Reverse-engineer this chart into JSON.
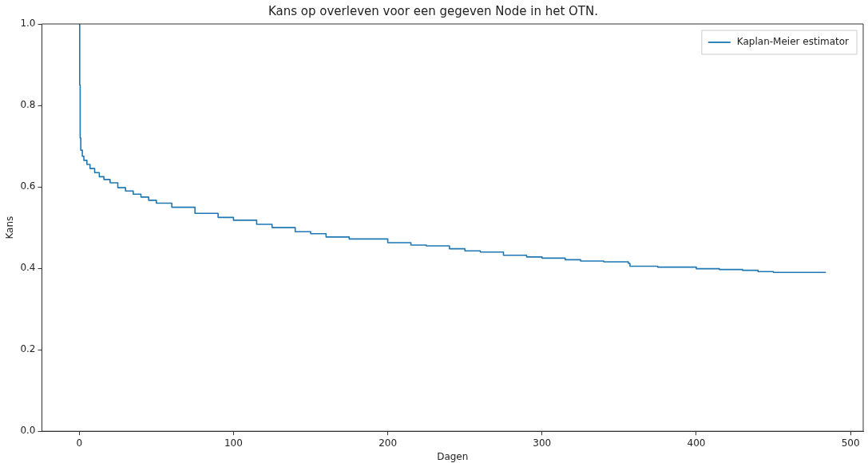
{
  "chart_data": {
    "type": "step",
    "title": "Kans op overleven voor een gegeven Node in het OTN.",
    "xlabel": "Dagen",
    "ylabel": "Kans",
    "xlim": [
      -24.2,
      508.2
    ],
    "xticks": [
      0,
      100,
      200,
      300,
      400,
      500
    ],
    "ylim": [
      0,
      1
    ],
    "yticks": [
      {
        "value": 0,
        "label": "0.0"
      },
      0.2,
      0.4,
      0.6,
      0.8,
      {
        "value": 1,
        "label": "1.0"
      }
    ],
    "grid": false,
    "legend": "top right",
    "marker": "none",
    "line_style": "solid",
    "series": [
      {
        "name": "Kaplan-Meier estimator",
        "color": "#1f77b4",
        "x": [
          0,
          0.3,
          0.6,
          1,
          2,
          3,
          5,
          7,
          10,
          13,
          16,
          20,
          25,
          30,
          35,
          40,
          45,
          50,
          60,
          75,
          90,
          100,
          115,
          125,
          140,
          150,
          160,
          175,
          200,
          215,
          225,
          240,
          250,
          260,
          275,
          290,
          300,
          315,
          325,
          340,
          356,
          357,
          375,
          400,
          415,
          430,
          440,
          450,
          465,
          484
        ],
        "values": [
          1,
          0.85,
          0.72,
          0.69,
          0.675,
          0.665,
          0.655,
          0.645,
          0.635,
          0.625,
          0.618,
          0.61,
          0.598,
          0.59,
          0.582,
          0.575,
          0.567,
          0.56,
          0.55,
          0.535,
          0.525,
          0.518,
          0.508,
          0.5,
          0.49,
          0.485,
          0.477,
          0.472,
          0.463,
          0.457,
          0.455,
          0.448,
          0.443,
          0.44,
          0.432,
          0.428,
          0.425,
          0.421,
          0.418,
          0.416,
          0.412,
          0.405,
          0.403,
          0.399,
          0.397,
          0.395,
          0.392,
          0.39,
          0.39,
          0.39
        ]
      }
    ]
  }
}
